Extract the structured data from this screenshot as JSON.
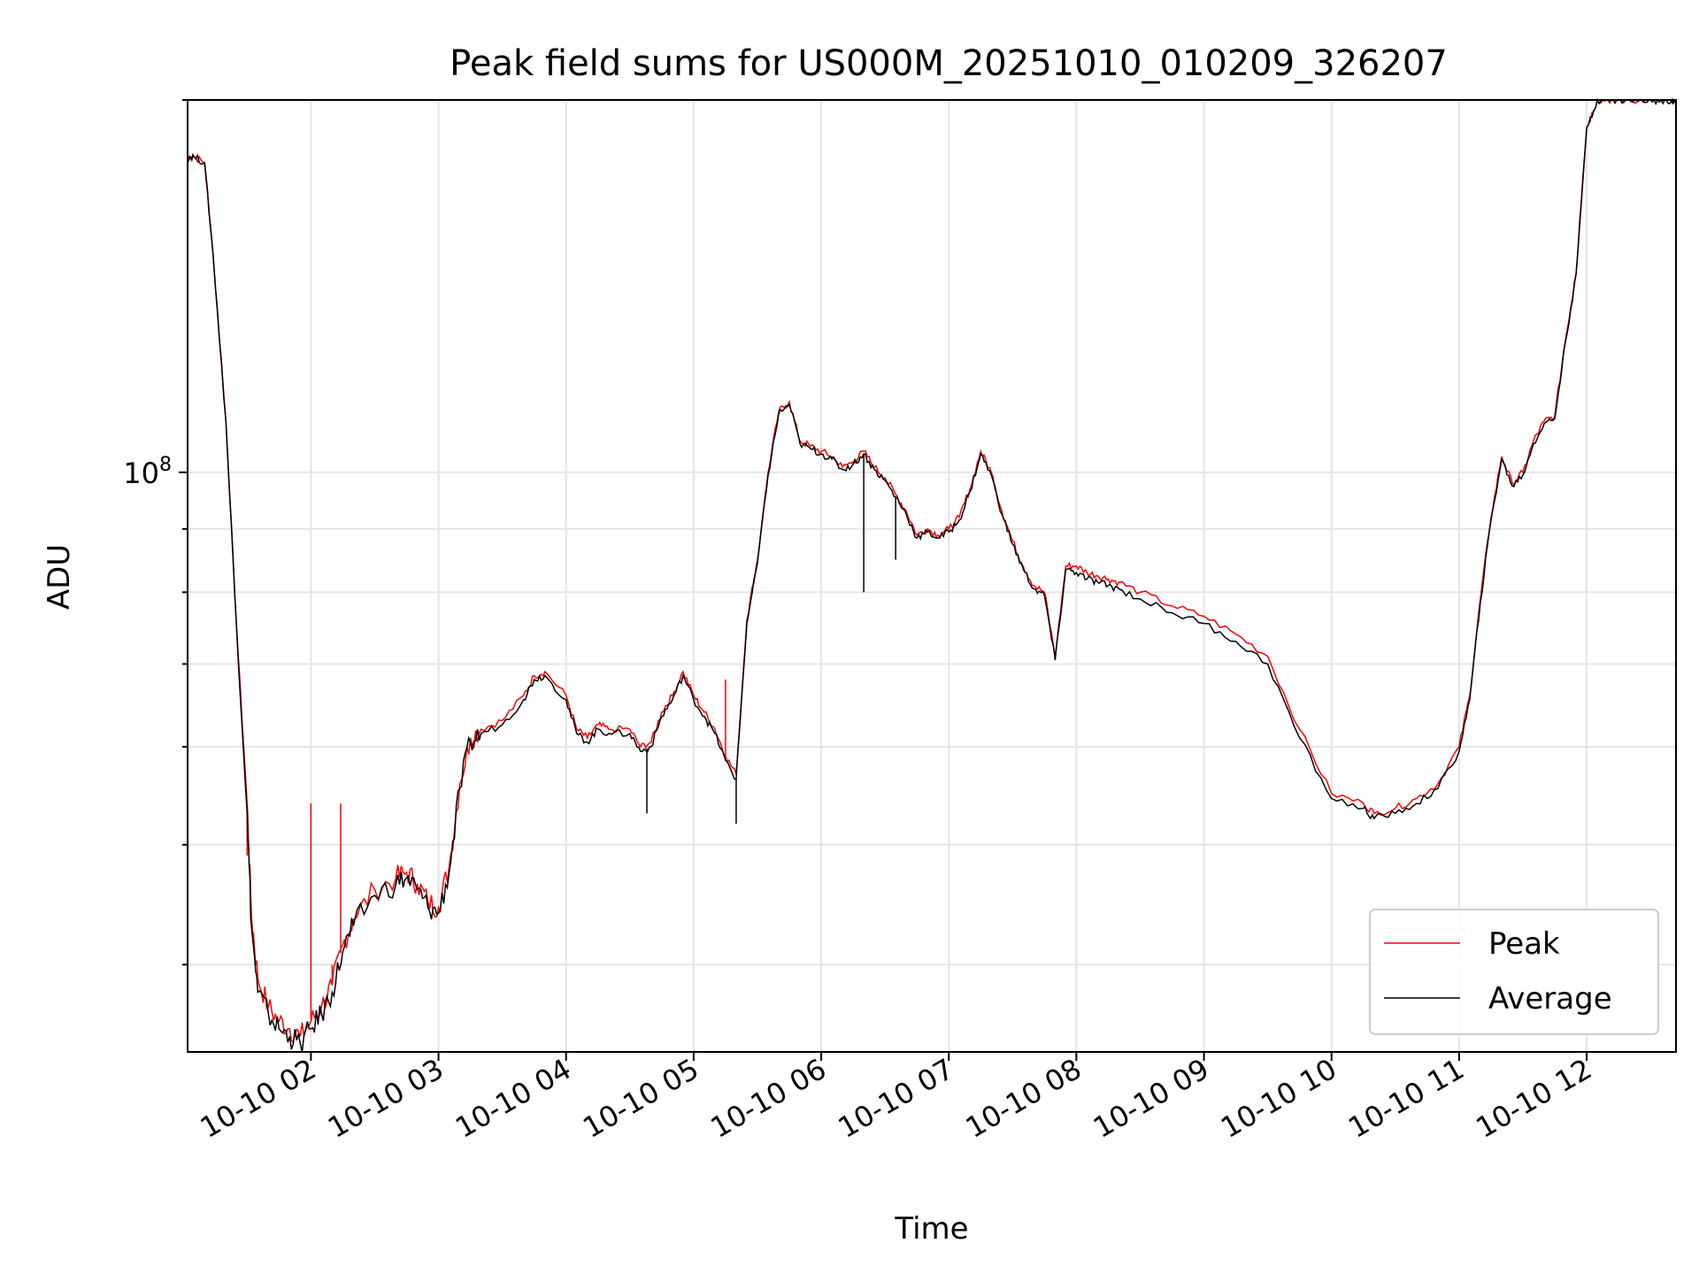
{
  "chart_data": {
    "type": "line",
    "title": "Peak field sums for US000M_20251010_010209_326207",
    "xlabel": "Time",
    "ylabel": "ADU",
    "yscale": "log",
    "xlim": [
      "2025-10-10T01:02",
      "2025-10-10T12:42"
    ],
    "ylim": [
      34000000.0,
      200000000.0
    ],
    "grid": true,
    "legend_position": "lower-right",
    "x_ticks": [
      "10-10 02",
      "10-10 03",
      "10-10 04",
      "10-10 05",
      "10-10 06",
      "10-10 07",
      "10-10 08",
      "10-10 09",
      "10-10 10",
      "10-10 11",
      "10-10 12"
    ],
    "y_ticks": [
      {
        "value": 100000000.0,
        "label_base": "10",
        "label_exp": "8"
      }
    ],
    "series": [
      {
        "name": "Peak",
        "color": "#ff0000",
        "x": [
          "01:02",
          "01:05",
          "01:10",
          "01:14",
          "01:20",
          "01:25",
          "01:30",
          "01:32",
          "01:35",
          "01:40",
          "01:45",
          "01:50",
          "01:55",
          "02:00",
          "02:05",
          "02:10",
          "02:15",
          "02:20",
          "02:30",
          "02:40",
          "02:45",
          "02:50",
          "02:55",
          "03:00",
          "03:05",
          "03:10",
          "03:15",
          "03:20",
          "03:30",
          "03:40",
          "03:45",
          "03:50",
          "04:00",
          "04:05",
          "04:10",
          "04:15",
          "04:20",
          "04:30",
          "04:35",
          "04:40",
          "04:45",
          "04:50",
          "04:55",
          "05:00",
          "05:05",
          "05:10",
          "05:15",
          "05:20",
          "05:25",
          "05:30",
          "05:35",
          "05:40",
          "05:45",
          "05:50",
          "05:55",
          "06:00",
          "06:05",
          "06:10",
          "06:15",
          "06:20",
          "06:25",
          "06:30",
          "06:35",
          "06:40",
          "06:45",
          "06:50",
          "06:55",
          "07:00",
          "07:05",
          "07:10",
          "07:15",
          "07:20",
          "07:25",
          "07:30",
          "07:35",
          "07:40",
          "07:45",
          "07:50",
          "07:55",
          "08:00",
          "08:05",
          "08:10",
          "08:15",
          "08:20",
          "08:30",
          "08:45",
          "09:00",
          "09:15",
          "09:30",
          "09:45",
          "10:00",
          "10:15",
          "10:20",
          "10:30",
          "10:40",
          "10:50",
          "11:00",
          "11:05",
          "11:10",
          "11:15",
          "11:20",
          "11:25",
          "11:30",
          "11:35",
          "11:40",
          "11:45",
          "11:50",
          "11:55",
          "12:00",
          "12:05",
          "12:10",
          "12:15",
          "12:20",
          "12:25",
          "12:30",
          "12:35",
          "12:40",
          "12:42"
        ],
        "values": [
          180000000,
          180000000,
          178000000,
          150000000,
          110000000,
          75000000,
          54000000,
          44000000,
          39000000,
          37000000,
          36000000,
          35500000,
          35000000,
          36000000,
          37000000,
          38500000,
          41500000,
          43500000,
          46000000,
          47000000,
          47500000,
          46500000,
          45000000,
          44500000,
          48000000,
          56000000,
          61000000,
          62000000,
          63000000,
          66000000,
          68500000,
          69000000,
          66000000,
          62000000,
          61000000,
          62500000,
          62000000,
          62000000,
          60000000,
          60500000,
          64000000,
          66000000,
          69000000,
          66000000,
          64000000,
          62000000,
          59000000,
          57000000,
          76000000,
          85000000,
          100000000,
          112000000,
          114000000,
          106000000,
          105000000,
          104000000,
          103000000,
          101000000,
          102000000,
          104000000,
          101000000,
          99000000,
          96000000,
          93000000,
          89000000,
          90000000,
          89000000,
          90000000,
          92000000,
          97000000,
          104000000,
          100000000,
          93000000,
          88000000,
          84000000,
          81000000,
          80000000,
          71000000,
          84000000,
          84000000,
          83000000,
          82500000,
          82000000,
          81500000,
          80000000,
          78000000,
          76500000,
          74000000,
          71000000,
          62000000,
          55000000,
          54000000,
          53000000,
          53500000,
          54500000,
          56000000,
          60000000,
          66000000,
          79000000,
          92000000,
          103000000,
          98000000,
          100000000,
          106000000,
          110000000,
          111000000,
          128000000,
          145000000,
          190000000,
          200000000,
          200000000,
          200000000,
          200000000,
          200000000,
          200000000,
          200000000,
          200000000,
          200000000
        ],
        "spikes": [
          {
            "x": "01:30",
            "value": 49000000
          },
          {
            "x": "02:00",
            "value": 54000000
          },
          {
            "x": "02:10",
            "value": 40000000
          },
          {
            "x": "02:14",
            "value": 54000000
          },
          {
            "x": "05:15",
            "value": 68000000
          }
        ]
      },
      {
        "name": "Average",
        "color": "#000000",
        "x": [
          "01:02",
          "01:05",
          "01:10",
          "01:14",
          "01:20",
          "01:25",
          "01:30",
          "01:32",
          "01:35",
          "01:40",
          "01:45",
          "01:50",
          "01:55",
          "02:00",
          "02:05",
          "02:10",
          "02:15",
          "02:20",
          "02:30",
          "02:40",
          "02:45",
          "02:50",
          "02:55",
          "03:00",
          "03:05",
          "03:10",
          "03:15",
          "03:20",
          "03:30",
          "03:40",
          "03:45",
          "03:50",
          "04:00",
          "04:05",
          "04:10",
          "04:15",
          "04:20",
          "04:30",
          "04:35",
          "04:40",
          "04:45",
          "04:50",
          "04:55",
          "05:00",
          "05:05",
          "05:10",
          "05:15",
          "05:20",
          "05:25",
          "05:30",
          "05:35",
          "05:40",
          "05:45",
          "05:50",
          "05:55",
          "06:00",
          "06:05",
          "06:10",
          "06:15",
          "06:20",
          "06:25",
          "06:30",
          "06:35",
          "06:40",
          "06:45",
          "06:50",
          "06:55",
          "07:00",
          "07:05",
          "07:10",
          "07:15",
          "07:20",
          "07:25",
          "07:30",
          "07:35",
          "07:40",
          "07:45",
          "07:50",
          "07:55",
          "08:00",
          "08:05",
          "08:10",
          "08:15",
          "08:20",
          "08:30",
          "08:45",
          "09:00",
          "09:15",
          "09:30",
          "09:45",
          "10:00",
          "10:15",
          "10:20",
          "10:30",
          "10:40",
          "10:50",
          "11:00",
          "11:05",
          "11:10",
          "11:15",
          "11:20",
          "11:25",
          "11:30",
          "11:35",
          "11:40",
          "11:45",
          "11:50",
          "11:55",
          "12:00",
          "12:05",
          "12:10",
          "12:15",
          "12:20",
          "12:25",
          "12:30",
          "12:35",
          "12:40",
          "12:42"
        ],
        "values": [
          180000000,
          180000000,
          178000000,
          150000000,
          110000000,
          75000000,
          53000000,
          43000000,
          38000000,
          36500000,
          35500000,
          35000000,
          34500000,
          35500000,
          36500000,
          38000000,
          41000000,
          43000000,
          45500000,
          46500000,
          47000000,
          46000000,
          44500000,
          44000000,
          47500000,
          55500000,
          60500000,
          61500000,
          62500000,
          65500000,
          68000000,
          68500000,
          65500000,
          61500000,
          60500000,
          62000000,
          61500000,
          61500000,
          59500000,
          60000000,
          63500000,
          65500000,
          68500000,
          65500000,
          63500000,
          61500000,
          58500000,
          56500000,
          75500000,
          84500000,
          99500000,
          111500000,
          113500000,
          105500000,
          104500000,
          103500000,
          102500000,
          100500000,
          101500000,
          103500000,
          100500000,
          98500000,
          95500000,
          92500000,
          88500000,
          89500000,
          88500000,
          89500000,
          91500000,
          96500000,
          103500000,
          99500000,
          92500000,
          87500000,
          83500000,
          80500000,
          79500000,
          70500000,
          83500000,
          83000000,
          82000000,
          81500000,
          81000000,
          80500000,
          79000000,
          77000000,
          75500000,
          73000000,
          70000000,
          61000000,
          54500000,
          53500000,
          52500000,
          53000000,
          54000000,
          55500000,
          59500000,
          65500000,
          78500000,
          91500000,
          102500000,
          97500000,
          99500000,
          105500000,
          109500000,
          110500000,
          127500000,
          144500000,
          190000000,
          200000000,
          200000000,
          200000000,
          200000000,
          200000000,
          200000000,
          200000000,
          200000000,
          200000000
        ],
        "dips": [
          {
            "x": "04:38",
            "value": 53000000
          },
          {
            "x": "05:20",
            "value": 52000000
          },
          {
            "x": "06:20",
            "value": 80000000
          },
          {
            "x": "06:35",
            "value": 85000000
          }
        ]
      }
    ]
  }
}
